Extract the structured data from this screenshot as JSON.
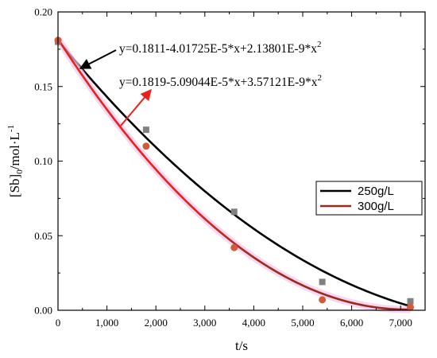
{
  "chart_data": {
    "type": "scatter",
    "xlabel": "t/s",
    "ylabel": "[Sb]0/mol·L-1",
    "ylabel_parts": {
      "base": "[Sb]",
      "sub": "0",
      "unit": "/mol·L",
      "sup": "-1"
    },
    "xlim": [
      0,
      7500
    ],
    "ylim": [
      0,
      0.2
    ],
    "xticks": [
      0,
      1000,
      2000,
      3000,
      4000,
      5000,
      6000,
      7000
    ],
    "xtick_labels": [
      "0",
      "1,000",
      "2,000",
      "3,000",
      "4,000",
      "5,000",
      "6,000",
      "7,000"
    ],
    "yticks": [
      0,
      0.05,
      0.1,
      0.15,
      0.2
    ],
    "ytick_labels": [
      "0.00",
      "0.05",
      "0.10",
      "0.15",
      "0.20"
    ],
    "grid": false,
    "legend_position": "right",
    "series": [
      {
        "name": "250g/L",
        "color": "#000000",
        "marker_color": "#808080",
        "marker": "square",
        "points": [
          {
            "x": 0,
            "y": 0.18
          },
          {
            "x": 1800,
            "y": 0.121
          },
          {
            "x": 3600,
            "y": 0.066
          },
          {
            "x": 5400,
            "y": 0.019
          },
          {
            "x": 7200,
            "y": 0.006
          }
        ],
        "fit": {
          "a": 0.1811,
          "b": -4.01725e-05,
          "c": 2.13801e-09
        },
        "equation": "y=0.1811-4.01725E-5*x+2.13801E-9*x",
        "equation_sup": "2",
        "equation_arrow_color": "#000000"
      },
      {
        "name": "300g/L",
        "color": "#9b2a1a",
        "fit_color_start": "#e8221a",
        "marker_color": "#d05a3a",
        "marker": "circle",
        "points": [
          {
            "x": 0,
            "y": 0.181
          },
          {
            "x": 1800,
            "y": 0.11
          },
          {
            "x": 3600,
            "y": 0.042
          },
          {
            "x": 5400,
            "y": 0.007
          },
          {
            "x": 7200,
            "y": 0.002
          }
        ],
        "fit": {
          "a": 0.1819,
          "b": -5.09044e-05,
          "c": 3.57121e-09
        },
        "equation": "y=0.1819-5.09044E-5*x+3.57121E-9*x",
        "equation_sup": "2",
        "equation_arrow_color": "#e8221a"
      }
    ]
  }
}
